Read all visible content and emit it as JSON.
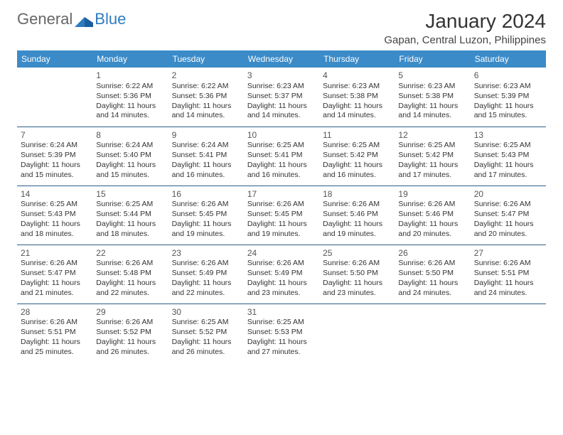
{
  "logo": {
    "text_general": "General",
    "text_blue": "Blue"
  },
  "title": "January 2024",
  "location": "Gapan, Central Luzon, Philippines",
  "colors": {
    "header_bg": "#3b8bc8",
    "header_text": "#ffffff",
    "cell_border": "#2d5f8a",
    "text": "#333333",
    "logo_gray": "#666666",
    "logo_blue": "#2f7bc0",
    "background": "#ffffff"
  },
  "weekdays": [
    "Sunday",
    "Monday",
    "Tuesday",
    "Wednesday",
    "Thursday",
    "Friday",
    "Saturday"
  ],
  "weeks": [
    [
      null,
      {
        "day": "1",
        "sunrise": "Sunrise: 6:22 AM",
        "sunset": "Sunset: 5:36 PM",
        "daylight": "Daylight: 11 hours and 14 minutes."
      },
      {
        "day": "2",
        "sunrise": "Sunrise: 6:22 AM",
        "sunset": "Sunset: 5:36 PM",
        "daylight": "Daylight: 11 hours and 14 minutes."
      },
      {
        "day": "3",
        "sunrise": "Sunrise: 6:23 AM",
        "sunset": "Sunset: 5:37 PM",
        "daylight": "Daylight: 11 hours and 14 minutes."
      },
      {
        "day": "4",
        "sunrise": "Sunrise: 6:23 AM",
        "sunset": "Sunset: 5:38 PM",
        "daylight": "Daylight: 11 hours and 14 minutes."
      },
      {
        "day": "5",
        "sunrise": "Sunrise: 6:23 AM",
        "sunset": "Sunset: 5:38 PM",
        "daylight": "Daylight: 11 hours and 14 minutes."
      },
      {
        "day": "6",
        "sunrise": "Sunrise: 6:23 AM",
        "sunset": "Sunset: 5:39 PM",
        "daylight": "Daylight: 11 hours and 15 minutes."
      }
    ],
    [
      {
        "day": "7",
        "sunrise": "Sunrise: 6:24 AM",
        "sunset": "Sunset: 5:39 PM",
        "daylight": "Daylight: 11 hours and 15 minutes."
      },
      {
        "day": "8",
        "sunrise": "Sunrise: 6:24 AM",
        "sunset": "Sunset: 5:40 PM",
        "daylight": "Daylight: 11 hours and 15 minutes."
      },
      {
        "day": "9",
        "sunrise": "Sunrise: 6:24 AM",
        "sunset": "Sunset: 5:41 PM",
        "daylight": "Daylight: 11 hours and 16 minutes."
      },
      {
        "day": "10",
        "sunrise": "Sunrise: 6:25 AM",
        "sunset": "Sunset: 5:41 PM",
        "daylight": "Daylight: 11 hours and 16 minutes."
      },
      {
        "day": "11",
        "sunrise": "Sunrise: 6:25 AM",
        "sunset": "Sunset: 5:42 PM",
        "daylight": "Daylight: 11 hours and 16 minutes."
      },
      {
        "day": "12",
        "sunrise": "Sunrise: 6:25 AM",
        "sunset": "Sunset: 5:42 PM",
        "daylight": "Daylight: 11 hours and 17 minutes."
      },
      {
        "day": "13",
        "sunrise": "Sunrise: 6:25 AM",
        "sunset": "Sunset: 5:43 PM",
        "daylight": "Daylight: 11 hours and 17 minutes."
      }
    ],
    [
      {
        "day": "14",
        "sunrise": "Sunrise: 6:25 AM",
        "sunset": "Sunset: 5:43 PM",
        "daylight": "Daylight: 11 hours and 18 minutes."
      },
      {
        "day": "15",
        "sunrise": "Sunrise: 6:25 AM",
        "sunset": "Sunset: 5:44 PM",
        "daylight": "Daylight: 11 hours and 18 minutes."
      },
      {
        "day": "16",
        "sunrise": "Sunrise: 6:26 AM",
        "sunset": "Sunset: 5:45 PM",
        "daylight": "Daylight: 11 hours and 19 minutes."
      },
      {
        "day": "17",
        "sunrise": "Sunrise: 6:26 AM",
        "sunset": "Sunset: 5:45 PM",
        "daylight": "Daylight: 11 hours and 19 minutes."
      },
      {
        "day": "18",
        "sunrise": "Sunrise: 6:26 AM",
        "sunset": "Sunset: 5:46 PM",
        "daylight": "Daylight: 11 hours and 19 minutes."
      },
      {
        "day": "19",
        "sunrise": "Sunrise: 6:26 AM",
        "sunset": "Sunset: 5:46 PM",
        "daylight": "Daylight: 11 hours and 20 minutes."
      },
      {
        "day": "20",
        "sunrise": "Sunrise: 6:26 AM",
        "sunset": "Sunset: 5:47 PM",
        "daylight": "Daylight: 11 hours and 20 minutes."
      }
    ],
    [
      {
        "day": "21",
        "sunrise": "Sunrise: 6:26 AM",
        "sunset": "Sunset: 5:47 PM",
        "daylight": "Daylight: 11 hours and 21 minutes."
      },
      {
        "day": "22",
        "sunrise": "Sunrise: 6:26 AM",
        "sunset": "Sunset: 5:48 PM",
        "daylight": "Daylight: 11 hours and 22 minutes."
      },
      {
        "day": "23",
        "sunrise": "Sunrise: 6:26 AM",
        "sunset": "Sunset: 5:49 PM",
        "daylight": "Daylight: 11 hours and 22 minutes."
      },
      {
        "day": "24",
        "sunrise": "Sunrise: 6:26 AM",
        "sunset": "Sunset: 5:49 PM",
        "daylight": "Daylight: 11 hours and 23 minutes."
      },
      {
        "day": "25",
        "sunrise": "Sunrise: 6:26 AM",
        "sunset": "Sunset: 5:50 PM",
        "daylight": "Daylight: 11 hours and 23 minutes."
      },
      {
        "day": "26",
        "sunrise": "Sunrise: 6:26 AM",
        "sunset": "Sunset: 5:50 PM",
        "daylight": "Daylight: 11 hours and 24 minutes."
      },
      {
        "day": "27",
        "sunrise": "Sunrise: 6:26 AM",
        "sunset": "Sunset: 5:51 PM",
        "daylight": "Daylight: 11 hours and 24 minutes."
      }
    ],
    [
      {
        "day": "28",
        "sunrise": "Sunrise: 6:26 AM",
        "sunset": "Sunset: 5:51 PM",
        "daylight": "Daylight: 11 hours and 25 minutes."
      },
      {
        "day": "29",
        "sunrise": "Sunrise: 6:26 AM",
        "sunset": "Sunset: 5:52 PM",
        "daylight": "Daylight: 11 hours and 26 minutes."
      },
      {
        "day": "30",
        "sunrise": "Sunrise: 6:25 AM",
        "sunset": "Sunset: 5:52 PM",
        "daylight": "Daylight: 11 hours and 26 minutes."
      },
      {
        "day": "31",
        "sunrise": "Sunrise: 6:25 AM",
        "sunset": "Sunset: 5:53 PM",
        "daylight": "Daylight: 11 hours and 27 minutes."
      },
      null,
      null,
      null
    ]
  ]
}
